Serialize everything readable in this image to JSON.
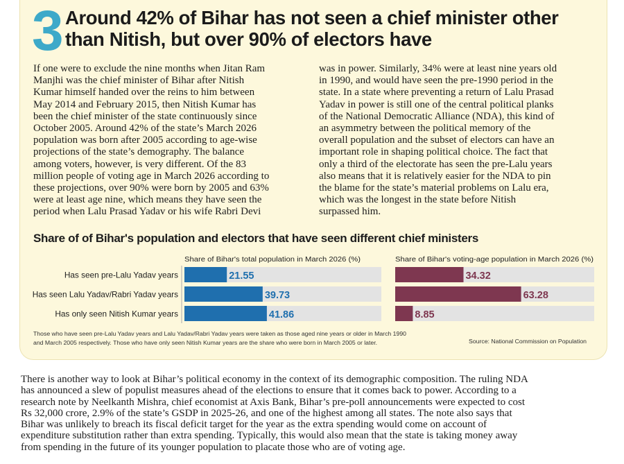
{
  "article": {
    "section_number": "3",
    "headline_lines": [
      "Around 42% of Bihar has not seen a chief minister other",
      "than Nitish, but over 90% of electors have"
    ],
    "left_column_lines": [
      "If one were to exclude the nine months when Jitan Ram",
      "Manjhi was the chief minister of Bihar after Nitish",
      "Kumar himself handed over the reins to him between",
      "May 2014 and February 2015, then Nitish Kumar has",
      "been the chief minister of the state continuously since",
      "October 2005. Around 42% of the state’s March 2026",
      "population was born after 2005 according to age-wise",
      "projections of the state’s demography. The balance",
      "among voters, however, is very different. Of the 83",
      "million people of voting age in March 2026 according to",
      "these projections, over 90% were born by 2005 and 63%",
      "were at least age nine, which means they have seen the",
      "period when Lalu Prasad Yadav or his wife Rabri Devi"
    ],
    "right_column_lines": [
      "was in power. Similarly, 34% were at least nine years old",
      "in 1990, and would have seen the pre-1990 period in the",
      "state. In a state where preventing a return of Lalu Prasad",
      "Yadav in power is still one of the central political planks",
      "of the National Democratic Alliance (NDA), this kind of",
      "an asymmetry between the political memory of the",
      "overall population and the subset of electors can have an",
      "important role in shaping political choice. The fact that",
      "only a third of the electorate has seen the pre-Lalu years",
      "also means that it is relatively easier for the NDA to pin",
      "the blame for the state’s material problems on Lalu era,",
      "which was the longest in the state before Nitish",
      "surpassed him."
    ],
    "bottom_paragraph_lines": [
      "There is another way to look at Bihar’s political economy in the context of its demographic composition. The ruling NDA",
      "has announced a slew of populist measures ahead of the elections to ensure that it comes back to power. According to a",
      "research note by Neelkanth Mishra, chief economist at Axis Bank, Bihar’s pre-poll announcements were expected to cost",
      "Rs 32,000 crore, 2.9% of the state’s GSDP in 2025-26, and one of the highest among all states. The note also says that",
      "Bihar was unlikely to breach its fiscal deficit target for the year as the extra spending would come on account of",
      "expenditure substitution rather than extra spending. Typically, this would also mean that the state is taking money away",
      "from spending in the future of its younger population to placate those who are of voting age."
    ]
  },
  "chart_data": {
    "type": "bar",
    "orientation": "horizontal",
    "title": "Share of of Bihar's population and electors that have seen different chief ministers",
    "categories": [
      "Has seen pre-Lalu Yadav years",
      "Has seen Lalu Yadav/Rabri Yadav years",
      "Has only seen Nitish Kumar years"
    ],
    "series": [
      {
        "name": "Share of Bihar's total population in March 2026 (%)",
        "values": [
          21.55,
          39.73,
          41.86
        ],
        "color": "#1f6fae",
        "xlim": [
          0,
          100
        ]
      },
      {
        "name": "Share of Bihar's voting-age population in March 2026 (%)",
        "values": [
          34.32,
          63.28,
          8.85
        ],
        "color": "#7e3750",
        "xlim": [
          0,
          100
        ]
      }
    ],
    "track_color": "#e3e3e3",
    "footnote_lines": [
      "Those who have seen pre-Lalu Yadav years and Lalu Yadav/Rabri Yadav years were taken as those aged nine years or older in March 1990",
      "and March 2005 respectively. Those who have only seen Nitish Kumar years are the share who were born in March 2005 or later."
    ],
    "source": "Source: National Commission on Population"
  },
  "colors": {
    "card_background": "#fdf8dc",
    "accent_number": "#3da9c9"
  }
}
